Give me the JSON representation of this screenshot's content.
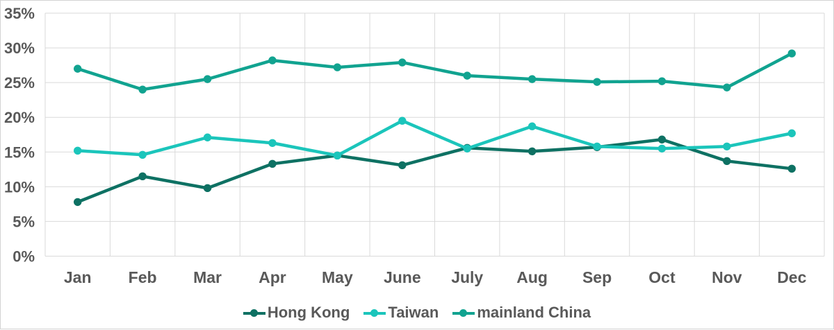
{
  "chart_data": {
    "type": "line",
    "title": "",
    "xlabel": "",
    "ylabel": "",
    "categories": [
      "Jan",
      "Feb",
      "Mar",
      "Apr",
      "May",
      "June",
      "July",
      "Aug",
      "Sep",
      "Oct",
      "Nov",
      "Dec"
    ],
    "series": [
      {
        "name": "Hong Kong",
        "color": "#0e7163",
        "values": [
          7.8,
          11.5,
          9.8,
          13.3,
          14.5,
          13.1,
          15.6,
          15.1,
          15.7,
          16.8,
          13.7,
          12.6
        ]
      },
      {
        "name": "Taiwan",
        "color": "#1bc5bb",
        "values": [
          15.2,
          14.6,
          17.1,
          16.3,
          14.5,
          19.5,
          15.5,
          18.7,
          15.8,
          15.5,
          15.8,
          17.7
        ]
      },
      {
        "name": "mainland China",
        "color": "#11a390",
        "values": [
          27.0,
          24.0,
          25.5,
          28.2,
          27.2,
          27.9,
          26.0,
          25.5,
          25.1,
          25.2,
          24.3,
          29.2
        ]
      }
    ],
    "ylim": [
      0,
      35
    ],
    "ytick_step": 5,
    "ytick_labels": [
      "0%",
      "5%",
      "10%",
      "15%",
      "20%",
      "25%",
      "30%",
      "35%"
    ],
    "grid": true,
    "marker": "circle",
    "legend_position": "bottom",
    "style": {
      "gridline_color": "#d9d9d9",
      "axis_label_color": "#595959",
      "border_color": "#d2d2d2",
      "background_color": "#ffffff"
    }
  }
}
